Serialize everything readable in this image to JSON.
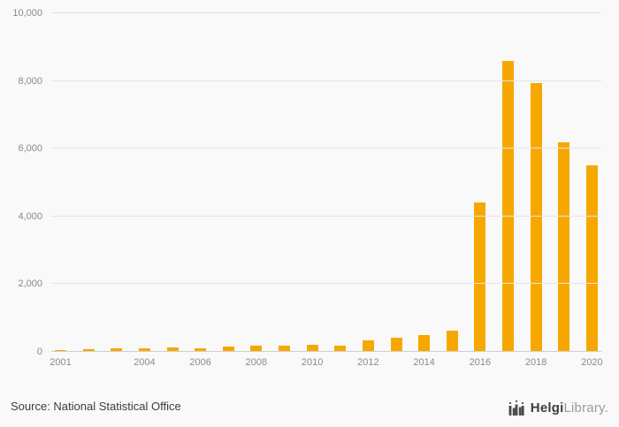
{
  "chart_data": {
    "type": "bar",
    "categories": [
      "2001",
      "2002",
      "2003",
      "2004",
      "2005",
      "2006",
      "2007",
      "2008",
      "2009",
      "2010",
      "2011",
      "2012",
      "2013",
      "2014",
      "2015",
      "2016",
      "2017",
      "2018",
      "2019",
      "2020"
    ],
    "values": [
      60,
      90,
      95,
      110,
      125,
      115,
      145,
      175,
      195,
      205,
      185,
      330,
      430,
      500,
      620,
      4400,
      8600,
      7950,
      6180,
      5500
    ],
    "title": "",
    "xlabel": "",
    "ylabel": "",
    "ylim": [
      0,
      10000
    ],
    "ytick_step": 2000,
    "ytick_labels": [
      "0",
      "2,000",
      "4,000",
      "6,000",
      "8,000",
      "10,000"
    ],
    "x_tick_labels_shown": [
      "2001",
      "2004",
      "2006",
      "2008",
      "2010",
      "2012",
      "2014",
      "2016",
      "2018",
      "2020"
    ],
    "bar_color": "#F7A800",
    "grid": true,
    "legend": "none",
    "background": "#f9f9f9"
  },
  "footer": {
    "source": "Source: National Statistical Office",
    "logo": {
      "icon": "bar-chart-logo-icon",
      "brand_bold": "Helgi",
      "brand_light": "Library."
    }
  }
}
